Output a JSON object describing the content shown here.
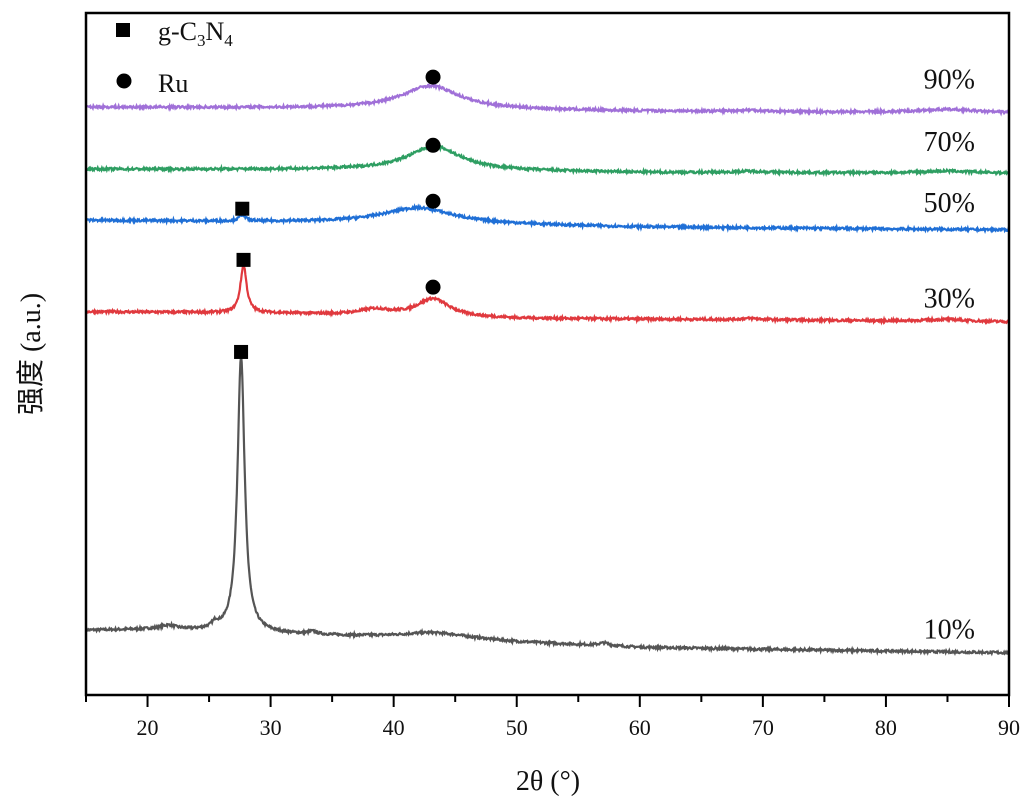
{
  "chart_data": {
    "type": "line",
    "title": "",
    "xlabel": "2θ (°)",
    "ylabel": "强度 (a.u.)",
    "xlim": [
      15,
      90
    ],
    "ylim": [
      0,
      100
    ],
    "xticks": [
      20,
      30,
      40,
      50,
      60,
      70,
      80,
      90
    ],
    "yticks": [],
    "grid": false,
    "legend": {
      "placement": "top-left",
      "entries": [
        {
          "symbol": "square",
          "label_main": "g-C",
          "sub1": "3",
          "label_mid": "N",
          "sub2": "4"
        },
        {
          "symbol": "circle",
          "label_main": "Ru"
        }
      ]
    },
    "series": [
      {
        "name": "10%",
        "color": "#555555",
        "baseline": [
          [
            15,
            9.5
          ],
          [
            20,
            9.6
          ],
          [
            25,
            9.4
          ],
          [
            32,
            8.9
          ],
          [
            36,
            8.7
          ],
          [
            45,
            8.5
          ],
          [
            50,
            7.8
          ],
          [
            60,
            7.0
          ],
          [
            70,
            6.7
          ],
          [
            90,
            6.2
          ]
        ],
        "peaks": [
          [
            27.6,
            40.5,
            0.35
          ],
          [
            21.7,
            0.6,
            0.8
          ],
          [
            25.5,
            0.8,
            0.3
          ],
          [
            33.4,
            0.4,
            0.4
          ],
          [
            43,
            0.6,
            2.5
          ],
          [
            57.1,
            0.4,
            0.5
          ]
        ],
        "markers": [
          {
            "symbol": "square",
            "x": 27.6,
            "y": 50.3
          }
        ]
      },
      {
        "name": "30%",
        "color": "#e0393e",
        "baseline": [
          [
            15,
            56.2
          ],
          [
            30,
            56.0
          ],
          [
            50,
            55.2
          ],
          [
            70,
            55.0
          ],
          [
            90,
            54.7
          ]
        ],
        "peaks": [
          [
            27.8,
            7.0,
            0.3
          ],
          [
            43.2,
            2.6,
            1.6
          ],
          [
            38.5,
            0.8,
            1.5
          ],
          [
            69,
            0.2,
            1
          ],
          [
            85,
            0.3,
            2
          ]
        ],
        "markers": [
          {
            "symbol": "square",
            "x": 27.8,
            "y": 63.8
          },
          {
            "symbol": "circle",
            "x": 43.2,
            "y": 59.8
          }
        ]
      },
      {
        "name": "50%",
        "color": "#1f6fd6",
        "baseline": [
          [
            15,
            69.6
          ],
          [
            40,
            69.2
          ],
          [
            60,
            68.6
          ],
          [
            90,
            68.2
          ]
        ],
        "peaks": [
          [
            27.7,
            0.9,
            0.3
          ],
          [
            42,
            2.3,
            3.5
          ]
        ],
        "markers": [
          {
            "symbol": "square",
            "x": 27.7,
            "y": 71.3
          },
          {
            "symbol": "circle",
            "x": 43.2,
            "y": 72.4
          }
        ]
      },
      {
        "name": "70%",
        "color": "#2e9e62",
        "baseline": [
          [
            15,
            77.1
          ],
          [
            40,
            77.0
          ],
          [
            60,
            76.6
          ],
          [
            90,
            76.5
          ]
        ],
        "peaks": [
          [
            43.3,
            3.5,
            2.6
          ],
          [
            69,
            0.2,
            1.5
          ],
          [
            85,
            0.3,
            2.5
          ]
        ],
        "markers": [
          {
            "symbol": "circle",
            "x": 43.2,
            "y": 80.6
          }
        ]
      },
      {
        "name": "90%",
        "color": "#a070d8",
        "baseline": [
          [
            15,
            86.2
          ],
          [
            40,
            86.0
          ],
          [
            60,
            85.6
          ],
          [
            90,
            85.3
          ]
        ],
        "peaks": [
          [
            43,
            3.4,
            2.8
          ],
          [
            69,
            0.2,
            1.5
          ],
          [
            85,
            0.5,
            3
          ]
        ],
        "markers": [
          {
            "symbol": "circle",
            "x": 43.2,
            "y": 90.6
          }
        ]
      }
    ]
  }
}
